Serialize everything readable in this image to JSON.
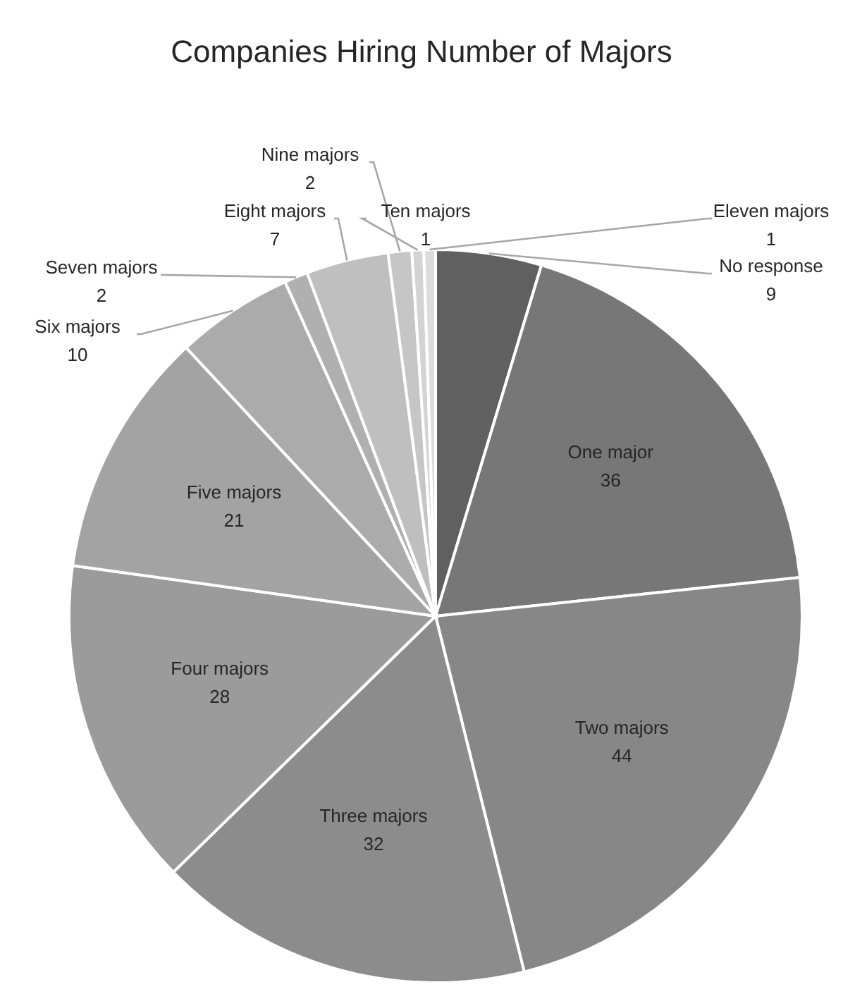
{
  "chart_data": {
    "type": "pie",
    "title": "Companies Hiring Number of Majors",
    "categories": [
      "No response",
      "One major",
      "Two majors",
      "Three majors",
      "Four majors",
      "Five majors",
      "Six majors",
      "Seven majors",
      "Eight majors",
      "Nine majors",
      "Ten majors",
      "Eleven majors"
    ],
    "values": [
      9,
      36,
      44,
      32,
      28,
      21,
      10,
      2,
      7,
      2,
      1,
      1
    ],
    "colors": [
      "#606060",
      "#777777",
      "#878787",
      "#8c8c8c",
      "#9b9b9b",
      "#a3a3a3",
      "#ababab",
      "#b0b0b0",
      "#bfbfbf",
      "#c6c6c6",
      "#d3d3d3",
      "#dcdcdc"
    ],
    "data_labels": true
  }
}
